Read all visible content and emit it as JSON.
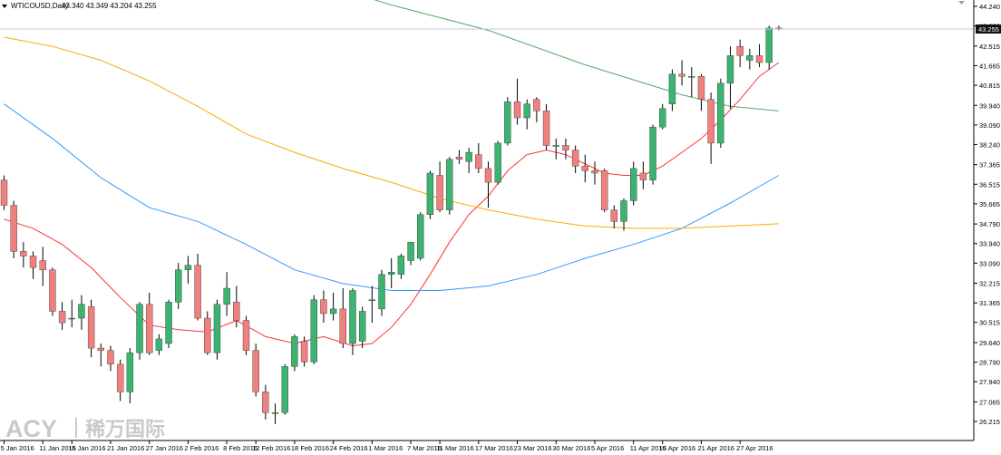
{
  "header": {
    "symbol": "WTICOUSD,Daily",
    "ohlc": "43.340 43.349 43.204 43.255"
  },
  "watermark": {
    "brand": "ACY",
    "cn": "稀万国际"
  },
  "colors": {
    "bull": "#3cb371",
    "bear": "#f08080",
    "ma_fast": "#ff3333",
    "ma_mid": "#3399ff",
    "ma_slow": "#ffaa00",
    "ma_long": "#55aa66",
    "grid": "#b0b0b0",
    "axis_text": "#000000"
  },
  "chart_data": {
    "type": "candlestick",
    "y_range": [
      26.0,
      44.6
    ],
    "y_ticks": [
      "44.240",
      "43.390",
      "42.515",
      "41.665",
      "40.815",
      "39.940",
      "39.090",
      "38.240",
      "37.365",
      "36.515",
      "35.665",
      "34.790",
      "33.940",
      "33.090",
      "32.215",
      "31.365",
      "30.515",
      "29.640",
      "28.790",
      "27.940",
      "27.065",
      "26.215"
    ],
    "current_price": "43.255",
    "x_labels": [
      "5 Jan 2016",
      "11 Jan 2016",
      "15 Jan 2016",
      "21 Jan 2016",
      "27 Jan 2016",
      "2 Feb 2016",
      "8 Feb 2016",
      "12 Feb 2016",
      "18 Feb 2016",
      "24 Feb 2016",
      "1 Mar 2016",
      "7 Mar 2016",
      "11 Mar 2016",
      "17 Mar 2016",
      "23 Mar 2016",
      "30 Mar 2016",
      "5 Apr 2016",
      "11 Apr 2016",
      "15 Apr 2016",
      "21 Apr 2016",
      "27 Apr 2016"
    ],
    "x_label_bar_index": [
      0,
      4,
      7,
      11,
      15,
      19,
      23,
      26,
      30,
      34,
      38,
      42,
      45,
      49,
      53,
      57,
      61,
      65,
      68,
      72,
      76
    ],
    "candles": [
      [
        36.7,
        36.9,
        35.4,
        35.6
      ],
      [
        35.6,
        35.8,
        33.3,
        33.6
      ],
      [
        33.6,
        34.0,
        32.9,
        33.4
      ],
      [
        33.4,
        33.6,
        32.4,
        32.9
      ],
      [
        33.2,
        33.8,
        32.1,
        32.8
      ],
      [
        32.8,
        32.9,
        30.8,
        31.0
      ],
      [
        31.0,
        31.4,
        30.2,
        30.5
      ],
      [
        30.7,
        31.5,
        30.3,
        30.7
      ],
      [
        30.7,
        31.7,
        30.2,
        31.3
      ],
      [
        31.2,
        31.5,
        29.0,
        29.4
      ],
      [
        29.4,
        29.6,
        28.6,
        29.3
      ],
      [
        29.3,
        29.5,
        28.4,
        28.7
      ],
      [
        28.7,
        28.9,
        27.1,
        27.5
      ],
      [
        27.5,
        29.4,
        27.0,
        29.2
      ],
      [
        29.2,
        31.4,
        28.9,
        31.3
      ],
      [
        31.3,
        31.8,
        29.1,
        29.2
      ],
      [
        29.3,
        30.0,
        29.1,
        29.8
      ],
      [
        29.6,
        31.5,
        29.4,
        31.4
      ],
      [
        31.4,
        33.1,
        31.1,
        32.8
      ],
      [
        32.8,
        33.4,
        32.2,
        33.0
      ],
      [
        33.0,
        33.5,
        30.6,
        30.7
      ],
      [
        30.7,
        31.0,
        29.1,
        29.2
      ],
      [
        29.2,
        31.5,
        28.9,
        31.3
      ],
      [
        31.3,
        32.7,
        30.8,
        32.0
      ],
      [
        31.4,
        32.1,
        30.3,
        30.6
      ],
      [
        30.6,
        30.8,
        29.1,
        29.3
      ],
      [
        29.3,
        29.6,
        27.3,
        27.5
      ],
      [
        27.5,
        27.8,
        26.3,
        26.6
      ],
      [
        26.6,
        27.0,
        26.1,
        26.6
      ],
      [
        26.6,
        28.7,
        26.5,
        28.6
      ],
      [
        28.6,
        30.0,
        28.4,
        29.9
      ],
      [
        29.7,
        29.9,
        28.6,
        28.8
      ],
      [
        28.8,
        31.7,
        28.7,
        31.5
      ],
      [
        31.5,
        31.9,
        30.5,
        30.9
      ],
      [
        30.9,
        31.8,
        30.6,
        31.1
      ],
      [
        31.1,
        32.0,
        29.4,
        29.6
      ],
      [
        29.6,
        32.0,
        29.1,
        31.9
      ],
      [
        29.7,
        31.2,
        29.4,
        31.0
      ],
      [
        31.5,
        32.1,
        30.5,
        31.5
      ],
      [
        31.1,
        32.8,
        30.8,
        32.6
      ],
      [
        32.6,
        33.3,
        32.0,
        32.7
      ],
      [
        32.6,
        33.5,
        32.4,
        33.4
      ],
      [
        33.2,
        34.0,
        33.0,
        34.0
      ],
      [
        33.3,
        35.3,
        33.2,
        35.2
      ],
      [
        35.2,
        37.1,
        35.0,
        37.0
      ],
      [
        36.9,
        37.5,
        35.3,
        35.4
      ],
      [
        35.4,
        37.7,
        35.2,
        37.6
      ],
      [
        37.7,
        38.0,
        37.4,
        37.6
      ],
      [
        37.5,
        38.1,
        37.0,
        37.9
      ],
      [
        37.8,
        38.3,
        37.0,
        37.2
      ],
      [
        37.2,
        37.5,
        35.5,
        36.6
      ],
      [
        36.6,
        38.4,
        36.5,
        38.3
      ],
      [
        38.3,
        40.3,
        38.2,
        40.1
      ],
      [
        40.1,
        41.1,
        39.1,
        39.4
      ],
      [
        39.4,
        40.2,
        38.9,
        40.0
      ],
      [
        40.2,
        40.3,
        39.2,
        39.7
      ],
      [
        39.7,
        40.0,
        38.0,
        38.2
      ],
      [
        38.2,
        38.5,
        37.6,
        38.2
      ],
      [
        38.2,
        38.5,
        37.6,
        38.0
      ],
      [
        38.0,
        38.2,
        37.0,
        37.3
      ],
      [
        37.3,
        37.8,
        36.6,
        37.1
      ],
      [
        37.1,
        37.5,
        36.5,
        37.0
      ],
      [
        37.1,
        37.2,
        35.3,
        35.4
      ],
      [
        35.4,
        35.6,
        34.6,
        34.9
      ],
      [
        34.9,
        35.9,
        34.5,
        35.8
      ],
      [
        35.8,
        37.5,
        35.6,
        37.2
      ],
      [
        37.0,
        37.5,
        36.3,
        36.7
      ],
      [
        36.7,
        39.1,
        36.5,
        39.0
      ],
      [
        39.0,
        40.0,
        38.9,
        39.8
      ],
      [
        40.0,
        41.5,
        39.7,
        41.3
      ],
      [
        41.3,
        41.9,
        40.8,
        41.2
      ],
      [
        41.2,
        41.6,
        40.3,
        41.2
      ],
      [
        41.2,
        41.3,
        39.7,
        40.2
      ],
      [
        40.2,
        40.5,
        37.4,
        38.3
      ],
      [
        38.3,
        41.1,
        38.1,
        40.9
      ],
      [
        40.9,
        42.5,
        39.8,
        42.1
      ],
      [
        42.5,
        42.8,
        41.6,
        42.1
      ],
      [
        41.9,
        42.4,
        41.5,
        42.1
      ],
      [
        42.1,
        42.6,
        41.6,
        41.8
      ],
      [
        41.8,
        43.4,
        41.5,
        43.3
      ],
      [
        43.3,
        43.4,
        43.2,
        43.255
      ]
    ],
    "moving_averages": [
      {
        "key": "ma_fast",
        "values": [
          [
            0,
            35.0
          ],
          [
            3,
            34.6
          ],
          [
            6,
            33.9
          ],
          [
            9,
            32.9
          ],
          [
            12,
            31.6
          ],
          [
            15,
            30.4
          ],
          [
            18,
            30.2
          ],
          [
            21,
            30.1
          ],
          [
            24,
            30.6
          ],
          [
            27,
            29.9
          ],
          [
            30,
            29.6
          ],
          [
            33,
            29.9
          ],
          [
            36,
            29.5
          ],
          [
            38,
            29.6
          ],
          [
            40,
            30.3
          ],
          [
            42,
            31.3
          ],
          [
            44,
            32.6
          ],
          [
            46,
            34.0
          ],
          [
            48,
            35.2
          ],
          [
            50,
            36.0
          ],
          [
            52,
            37.1
          ],
          [
            54,
            37.8
          ],
          [
            56,
            38.0
          ],
          [
            58,
            37.8
          ],
          [
            60,
            37.4
          ],
          [
            62,
            37.0
          ],
          [
            64,
            36.9
          ],
          [
            66,
            36.9
          ],
          [
            68,
            37.3
          ],
          [
            70,
            37.9
          ],
          [
            72,
            38.5
          ],
          [
            74,
            39.3
          ],
          [
            76,
            40.2
          ],
          [
            78,
            41.2
          ],
          [
            80,
            41.8
          ]
        ]
      },
      {
        "key": "ma_mid",
        "values": [
          [
            0,
            40.0
          ],
          [
            5,
            38.5
          ],
          [
            10,
            36.8
          ],
          [
            15,
            35.5
          ],
          [
            20,
            34.9
          ],
          [
            25,
            33.9
          ],
          [
            30,
            32.8
          ],
          [
            35,
            32.2
          ],
          [
            40,
            31.9
          ],
          [
            45,
            31.9
          ],
          [
            50,
            32.1
          ],
          [
            55,
            32.6
          ],
          [
            60,
            33.3
          ],
          [
            65,
            33.9
          ],
          [
            70,
            34.6
          ],
          [
            75,
            35.7
          ],
          [
            80,
            36.9
          ]
        ]
      },
      {
        "key": "ma_slow",
        "values": [
          [
            0,
            42.9
          ],
          [
            5,
            42.5
          ],
          [
            10,
            41.9
          ],
          [
            15,
            41.0
          ],
          [
            20,
            39.9
          ],
          [
            25,
            38.7
          ],
          [
            30,
            37.9
          ],
          [
            35,
            37.2
          ],
          [
            40,
            36.6
          ],
          [
            45,
            35.9
          ],
          [
            50,
            35.4
          ],
          [
            55,
            35.0
          ],
          [
            60,
            34.7
          ],
          [
            65,
            34.6
          ],
          [
            70,
            34.6
          ],
          [
            75,
            34.7
          ],
          [
            80,
            34.8
          ]
        ]
      },
      {
        "key": "ma_long",
        "values": [
          [
            22,
            46.5
          ],
          [
            30,
            45.6
          ],
          [
            40,
            44.3
          ],
          [
            50,
            43.2
          ],
          [
            60,
            41.7
          ],
          [
            70,
            40.4
          ],
          [
            75,
            39.9
          ],
          [
            80,
            39.7
          ]
        ]
      }
    ]
  }
}
